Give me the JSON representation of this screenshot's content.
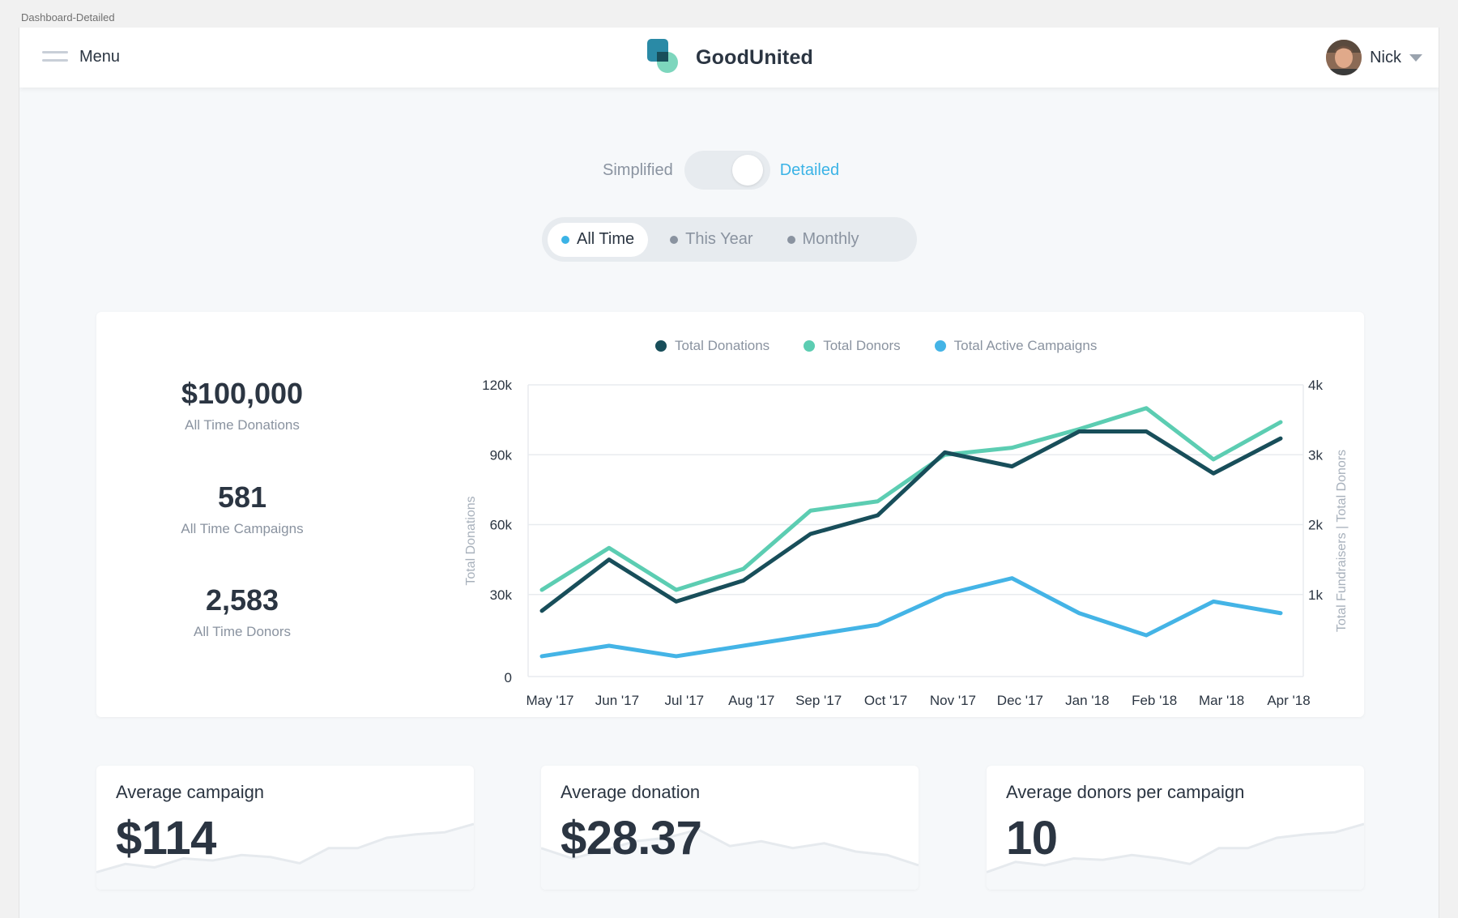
{
  "artboard_label": "Dashboard-Detailed",
  "header": {
    "menu_label": "Menu",
    "brand_name": "GoodUnited",
    "user_name": "Nick"
  },
  "view_toggle": {
    "left_label": "Simplified",
    "right_label": "Detailed",
    "selected": "Detailed"
  },
  "range_tabs": [
    {
      "label": "All Time",
      "active": true
    },
    {
      "label": "This Year",
      "active": false
    },
    {
      "label": "Monthly",
      "active": false
    }
  ],
  "stats": [
    {
      "value": "$100,000",
      "label": "All Time Donations"
    },
    {
      "value": "581",
      "label": "All Time Campaigns"
    },
    {
      "value": "2,583",
      "label": "All Time Donors"
    }
  ],
  "colors": {
    "donations": "#184e5a",
    "donors": "#5ccdb2",
    "campaigns": "#44b4e6",
    "accent": "#3bb3e6"
  },
  "chart_data": {
    "type": "line",
    "x": [
      "May '17",
      "Jun '17",
      "Jul '17",
      "Aug '17",
      "Sep '17",
      "Oct '17",
      "Nov '17",
      "Dec '17",
      "Jan '18",
      "Feb '18",
      "Mar '18",
      "Apr '18"
    ],
    "y_left_label": "Total Donations",
    "y_left_ticks": [
      "0",
      "30k",
      "60k",
      "90k",
      "120k"
    ],
    "y_left_lim": [
      0,
      120000
    ],
    "y_right_label": "Total Fundraisers | Total Donors",
    "y_right_ticks": [
      "1k",
      "2k",
      "3k",
      "4k"
    ],
    "y_right_lim": [
      0,
      4000
    ],
    "legend_position": "top-center",
    "grid": true,
    "series": [
      {
        "name": "Total Donations",
        "axis": "left",
        "values": [
          23000,
          45000,
          27000,
          36000,
          56000,
          64000,
          91000,
          85000,
          100000,
          100000,
          82000,
          97000
        ]
      },
      {
        "name": "Total Donors",
        "axis": "left",
        "values": [
          32000,
          50000,
          32000,
          41000,
          66000,
          70000,
          90000,
          93000,
          101000,
          110000,
          88000,
          104000
        ]
      },
      {
        "name": "Total Active Campaigns",
        "axis": "left",
        "values": [
          3500,
          8000,
          3500,
          8000,
          12500,
          17000,
          30000,
          37000,
          22000,
          12500,
          27000,
          22000
        ]
      }
    ]
  },
  "mini_cards": [
    {
      "title": "Average campaign",
      "value": "$114",
      "trend": [
        0.1,
        0.22,
        0.17,
        0.3,
        0.27,
        0.35,
        0.32,
        0.23,
        0.45,
        0.45,
        0.6,
        0.65,
        0.68,
        0.8
      ]
    },
    {
      "title": "Average donation",
      "value": "$28.37",
      "trend": [
        0.45,
        0.3,
        0.42,
        0.55,
        0.6,
        0.72,
        0.48,
        0.55,
        0.45,
        0.52,
        0.4,
        0.35,
        0.2
      ]
    },
    {
      "title": "Average donors per campaign",
      "value": "10",
      "trend": [
        0.1,
        0.25,
        0.2,
        0.3,
        0.28,
        0.35,
        0.3,
        0.22,
        0.45,
        0.45,
        0.6,
        0.65,
        0.68,
        0.8
      ]
    }
  ]
}
